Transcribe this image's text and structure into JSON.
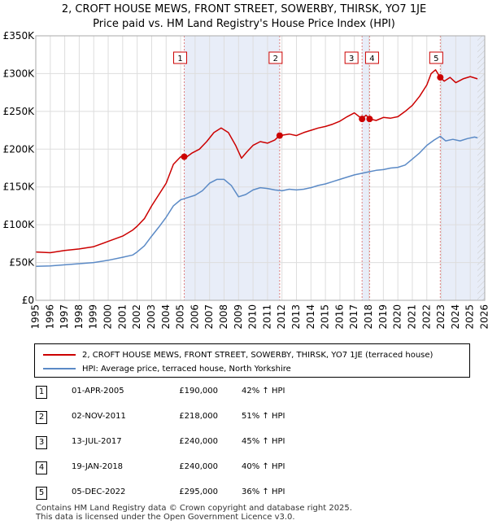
{
  "title": {
    "line1": "2, CROFT HOUSE MEWS, FRONT STREET, SOWERBY, THIRSK, YO7 1JE",
    "line2": "Price paid vs. HM Land Registry's House Price Index (HPI)"
  },
  "chart_data": {
    "type": "line",
    "xlim": [
      1995,
      2026
    ],
    "ylim": [
      0,
      350000
    ],
    "y_ticks": [
      0,
      50000,
      100000,
      150000,
      200000,
      250000,
      300000,
      350000
    ],
    "y_tick_labels": [
      "£0",
      "£50K",
      "£100K",
      "£150K",
      "£200K",
      "£250K",
      "£300K",
      "£350K"
    ],
    "x_ticks": [
      1995,
      1996,
      1997,
      1998,
      1999,
      2000,
      2001,
      2002,
      2003,
      2004,
      2005,
      2006,
      2007,
      2008,
      2009,
      2010,
      2011,
      2012,
      2013,
      2014,
      2015,
      2016,
      2017,
      2018,
      2019,
      2020,
      2021,
      2022,
      2023,
      2024,
      2025,
      2026
    ],
    "x_tick_labels": [
      "1995",
      "1996",
      "1997",
      "1998",
      "1999",
      "2000",
      "2001",
      "2002",
      "2003",
      "2004",
      "2005",
      "2006",
      "2007",
      "2008",
      "2009",
      "2010",
      "2011",
      "2012",
      "2013",
      "2014",
      "2015",
      "2016",
      "2017",
      "2018",
      "2019",
      "2020",
      "2021",
      "2022",
      "2023",
      "2024",
      "2025",
      "2026"
    ],
    "future_shade_from": 2025.5,
    "series": [
      {
        "name": "2, CROFT HOUSE MEWS, FRONT STREET, SOWERBY, THIRSK, YO7 1JE (terraced house)",
        "color": "#cc0000",
        "points": [
          [
            1995.0,
            64000
          ],
          [
            1996.0,
            63000
          ],
          [
            1997.0,
            66000
          ],
          [
            1998.0,
            68000
          ],
          [
            1999.0,
            71000
          ],
          [
            2000.0,
            78000
          ],
          [
            2001.0,
            85000
          ],
          [
            2001.7,
            93000
          ],
          [
            2002.0,
            98000
          ],
          [
            2002.5,
            108000
          ],
          [
            2003.0,
            125000
          ],
          [
            2003.5,
            140000
          ],
          [
            2004.0,
            155000
          ],
          [
            2004.5,
            180000
          ],
          [
            2005.0,
            190000
          ],
          [
            2005.3,
            188000
          ],
          [
            2005.8,
            195000
          ],
          [
            2006.3,
            200000
          ],
          [
            2006.8,
            210000
          ],
          [
            2007.3,
            222000
          ],
          [
            2007.8,
            228000
          ],
          [
            2008.3,
            222000
          ],
          [
            2008.8,
            205000
          ],
          [
            2009.2,
            188000
          ],
          [
            2009.6,
            197000
          ],
          [
            2010.0,
            205000
          ],
          [
            2010.5,
            210000
          ],
          [
            2011.0,
            208000
          ],
          [
            2011.5,
            212000
          ],
          [
            2011.83,
            218000
          ],
          [
            2012.5,
            220000
          ],
          [
            2013.0,
            218000
          ],
          [
            2013.5,
            222000
          ],
          [
            2014.0,
            225000
          ],
          [
            2014.5,
            228000
          ],
          [
            2015.0,
            230000
          ],
          [
            2015.5,
            233000
          ],
          [
            2016.0,
            237000
          ],
          [
            2016.5,
            243000
          ],
          [
            2017.0,
            248000
          ],
          [
            2017.53,
            240000
          ],
          [
            2017.8,
            245000
          ],
          [
            2018.05,
            240000
          ],
          [
            2018.5,
            238000
          ],
          [
            2019.0,
            242000
          ],
          [
            2019.5,
            241000
          ],
          [
            2020.0,
            243000
          ],
          [
            2020.5,
            250000
          ],
          [
            2021.0,
            258000
          ],
          [
            2021.5,
            270000
          ],
          [
            2022.0,
            285000
          ],
          [
            2022.3,
            300000
          ],
          [
            2022.6,
            305000
          ],
          [
            2022.93,
            295000
          ],
          [
            2023.2,
            290000
          ],
          [
            2023.6,
            295000
          ],
          [
            2024.0,
            288000
          ],
          [
            2024.5,
            293000
          ],
          [
            2025.0,
            296000
          ],
          [
            2025.5,
            293000
          ]
        ]
      },
      {
        "name": "HPI: Average price, terraced house, North Yorkshire",
        "color": "#5b8ac6",
        "points": [
          [
            1995.0,
            45000
          ],
          [
            1996.0,
            45500
          ],
          [
            1997.0,
            47000
          ],
          [
            1998.0,
            48500
          ],
          [
            1999.0,
            50000
          ],
          [
            2000.0,
            53000
          ],
          [
            2001.0,
            57000
          ],
          [
            2001.7,
            60000
          ],
          [
            2002.0,
            64000
          ],
          [
            2002.5,
            72000
          ],
          [
            2003.0,
            85000
          ],
          [
            2003.5,
            97000
          ],
          [
            2004.0,
            110000
          ],
          [
            2004.5,
            125000
          ],
          [
            2005.0,
            133000
          ],
          [
            2005.5,
            136000
          ],
          [
            2006.0,
            139000
          ],
          [
            2006.5,
            145000
          ],
          [
            2007.0,
            155000
          ],
          [
            2007.5,
            160000
          ],
          [
            2008.0,
            160000
          ],
          [
            2008.5,
            152000
          ],
          [
            2009.0,
            137000
          ],
          [
            2009.5,
            140000
          ],
          [
            2010.0,
            146000
          ],
          [
            2010.5,
            149000
          ],
          [
            2011.0,
            148000
          ],
          [
            2011.5,
            146000
          ],
          [
            2012.0,
            145000
          ],
          [
            2012.5,
            147000
          ],
          [
            2013.0,
            146000
          ],
          [
            2013.5,
            147000
          ],
          [
            2014.0,
            149000
          ],
          [
            2014.5,
            152000
          ],
          [
            2015.0,
            154000
          ],
          [
            2015.5,
            157000
          ],
          [
            2016.0,
            160000
          ],
          [
            2016.5,
            163000
          ],
          [
            2017.0,
            166000
          ],
          [
            2017.5,
            168000
          ],
          [
            2018.0,
            170000
          ],
          [
            2018.5,
            172000
          ],
          [
            2019.0,
            173000
          ],
          [
            2019.5,
            175000
          ],
          [
            2020.0,
            176000
          ],
          [
            2020.5,
            179000
          ],
          [
            2021.0,
            187000
          ],
          [
            2021.5,
            195000
          ],
          [
            2022.0,
            205000
          ],
          [
            2022.5,
            212000
          ],
          [
            2022.93,
            217000
          ],
          [
            2023.3,
            211000
          ],
          [
            2023.8,
            213000
          ],
          [
            2024.3,
            211000
          ],
          [
            2024.8,
            214000
          ],
          [
            2025.3,
            216000
          ],
          [
            2025.5,
            215000
          ]
        ]
      }
    ],
    "sales": [
      {
        "n": "1",
        "x": 2005.25,
        "price": 190000
      },
      {
        "n": "2",
        "x": 2011.84,
        "price": 218000
      },
      {
        "n": "3",
        "x": 2017.53,
        "price": 240000
      },
      {
        "n": "4",
        "x": 2018.05,
        "price": 240000
      },
      {
        "n": "5",
        "x": 2022.93,
        "price": 295000
      }
    ]
  },
  "legend": {
    "items": [
      {
        "label": "2, CROFT HOUSE MEWS, FRONT STREET, SOWERBY, THIRSK, YO7 1JE (terraced house)",
        "color": "#cc0000"
      },
      {
        "label": "HPI: Average price, terraced house, North Yorkshire",
        "color": "#5b8ac6"
      }
    ]
  },
  "sales_table": [
    {
      "num": "1",
      "date": "01-APR-2005",
      "price": "£190,000",
      "hpi": "42% ↑ HPI"
    },
    {
      "num": "2",
      "date": "02-NOV-2011",
      "price": "£218,000",
      "hpi": "51% ↑ HPI"
    },
    {
      "num": "3",
      "date": "13-JUL-2017",
      "price": "£240,000",
      "hpi": "45% ↑ HPI"
    },
    {
      "num": "4",
      "date": "19-JAN-2018",
      "price": "£240,000",
      "hpi": "40% ↑ HPI"
    },
    {
      "num": "5",
      "date": "05-DEC-2022",
      "price": "£295,000",
      "hpi": "36% ↑ HPI"
    }
  ],
  "footer": {
    "line1": "Contains HM Land Registry data © Crown copyright and database right 2025.",
    "line2": "This data is licensed under the Open Government Licence v3.0."
  }
}
